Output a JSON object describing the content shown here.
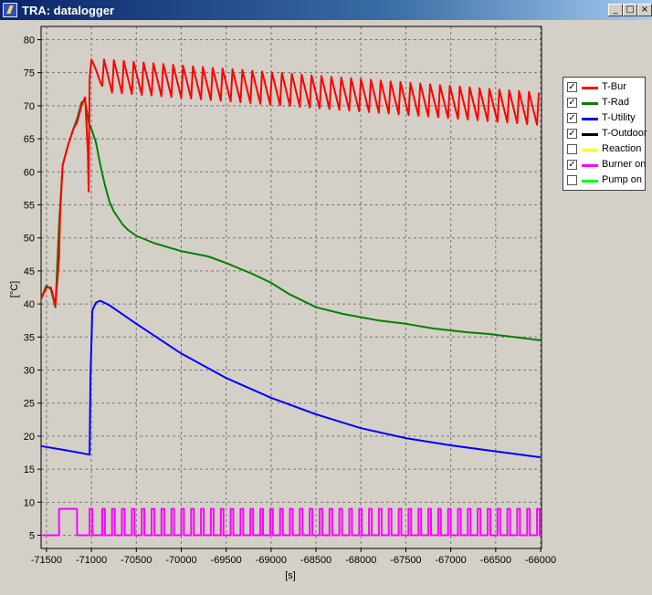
{
  "window": {
    "title": "TRA: datalogger",
    "minimize_label": "_",
    "maximize_label": "□",
    "close_label": "×"
  },
  "legend": {
    "items": [
      {
        "label": "T-Bur",
        "checked": true,
        "color": "#ff0000"
      },
      {
        "label": "T-Rad",
        "checked": true,
        "color": "#008000"
      },
      {
        "label": "T-Utility",
        "checked": true,
        "color": "#0000ff"
      },
      {
        "label": "T-Outdoor",
        "checked": true,
        "color": "#000000"
      },
      {
        "label": "Reaction",
        "checked": false,
        "color": "#ffff00"
      },
      {
        "label": "Burner on",
        "checked": true,
        "color": "#ff00ff"
      },
      {
        "label": "Pump on",
        "checked": false,
        "color": "#00ff00"
      }
    ]
  },
  "chart_data": {
    "type": "line",
    "xlabel": "[s]",
    "ylabel": "[°C]",
    "xlim": [
      -71560,
      -65990
    ],
    "ylim": [
      3,
      82
    ],
    "grid": true,
    "x_ticks": [
      -71500,
      -71000,
      -70500,
      -70000,
      -69500,
      -69000,
      -68500,
      -68000,
      -67500,
      -67000,
      -66500,
      -66000
    ],
    "y_ticks": [
      5,
      10,
      15,
      20,
      25,
      30,
      35,
      40,
      45,
      50,
      55,
      60,
      65,
      70,
      75,
      80
    ],
    "legend_position": "right",
    "series": [
      {
        "name": "T-Rad",
        "color": "#008000",
        "points": [
          [
            -71560,
            40.8
          ],
          [
            -71500,
            42.8
          ],
          [
            -71450,
            42.2
          ],
          [
            -71400,
            39.5
          ],
          [
            -71360,
            52
          ],
          [
            -71320,
            61
          ],
          [
            -71260,
            64
          ],
          [
            -71200,
            66.5
          ],
          [
            -71160,
            68
          ],
          [
            -71110,
            70.5
          ],
          [
            -71070,
            70.8
          ],
          [
            -71030,
            67.5
          ],
          [
            -71000,
            66.5
          ],
          [
            -70950,
            64.5
          ],
          [
            -70900,
            61
          ],
          [
            -70850,
            58
          ],
          [
            -70800,
            55.5
          ],
          [
            -70750,
            54
          ],
          [
            -70700,
            53
          ],
          [
            -70650,
            52
          ],
          [
            -70600,
            51.3
          ],
          [
            -70500,
            50.3
          ],
          [
            -70300,
            49.2
          ],
          [
            -70000,
            48
          ],
          [
            -69700,
            47.2
          ],
          [
            -69500,
            46.2
          ],
          [
            -69200,
            44.5
          ],
          [
            -69000,
            43.2
          ],
          [
            -68800,
            41.5
          ],
          [
            -68500,
            39.5
          ],
          [
            -68200,
            38.5
          ],
          [
            -68000,
            38
          ],
          [
            -67800,
            37.5
          ],
          [
            -67500,
            37
          ],
          [
            -67200,
            36.3
          ],
          [
            -67000,
            36
          ],
          [
            -66800,
            35.7
          ],
          [
            -66600,
            35.5
          ],
          [
            -66300,
            35
          ],
          [
            -66000,
            34.5
          ]
        ]
      },
      {
        "name": "T-Utility",
        "color": "#0000ff",
        "points": [
          [
            -71560,
            18.5
          ],
          [
            -71300,
            17.9
          ],
          [
            -71100,
            17.4
          ],
          [
            -71020,
            17.2
          ],
          [
            -71010,
            29
          ],
          [
            -70990,
            39
          ],
          [
            -70950,
            40.2
          ],
          [
            -70900,
            40.5
          ],
          [
            -70800,
            39.8
          ],
          [
            -70500,
            37
          ],
          [
            -70000,
            32.5
          ],
          [
            -69500,
            28.8
          ],
          [
            -69000,
            25.8
          ],
          [
            -68500,
            23.3
          ],
          [
            -68000,
            21.2
          ],
          [
            -67500,
            19.7
          ],
          [
            -67000,
            18.6
          ],
          [
            -66500,
            17.7
          ],
          [
            -66000,
            16.8
          ]
        ]
      },
      {
        "name": "T-Bur",
        "color": "#ff0000",
        "start": [
          [
            -71560,
            40.8
          ],
          [
            -71500,
            42.5
          ],
          [
            -71450,
            42.5
          ],
          [
            -71400,
            39.8
          ],
          [
            -71360,
            47
          ],
          [
            -71350,
            53
          ],
          [
            -71320,
            61
          ],
          [
            -71260,
            64
          ],
          [
            -71200,
            66.5
          ],
          [
            -71160,
            67.5
          ],
          [
            -71110,
            70
          ],
          [
            -71070,
            71.3
          ],
          [
            -71040,
            63
          ],
          [
            -71030,
            57
          ],
          [
            -71020,
            74
          ],
          [
            -71000,
            77
          ],
          [
            -70950,
            75.5
          ],
          [
            -70900,
            73.5
          ],
          [
            -70880,
            73
          ]
        ],
        "sawtooth": {
          "x_start": -70880,
          "x_end": -65990,
          "period": 110,
          "peak_start": 77,
          "peak_end": 72,
          "trough_start": 72,
          "trough_end": 67
        }
      },
      {
        "name": "Burner on",
        "color": "#ff00ff",
        "off_value": 5,
        "on_value": 9,
        "on_intervals": [
          [
            -71360,
            -71160
          ],
          [
            -71020,
            -70990
          ],
          [
            -70880,
            -70850
          ],
          [
            -70770,
            -70740
          ],
          [
            -70660,
            -70630
          ],
          [
            -70550,
            -70520
          ],
          [
            -70440,
            -70410
          ],
          [
            -70330,
            -70300
          ],
          [
            -70220,
            -70190
          ],
          [
            -70110,
            -70080
          ],
          [
            -70000,
            -69970
          ],
          [
            -69890,
            -69860
          ],
          [
            -69780,
            -69750
          ],
          [
            -69670,
            -69640
          ],
          [
            -69560,
            -69530
          ],
          [
            -69450,
            -69420
          ],
          [
            -69340,
            -69310
          ],
          [
            -69230,
            -69200
          ],
          [
            -69120,
            -69090
          ],
          [
            -69010,
            -68980
          ],
          [
            -68900,
            -68870
          ],
          [
            -68790,
            -68760
          ],
          [
            -68680,
            -68650
          ],
          [
            -68570,
            -68540
          ],
          [
            -68460,
            -68430
          ],
          [
            -68350,
            -68320
          ],
          [
            -68240,
            -68210
          ],
          [
            -68130,
            -68100
          ],
          [
            -68020,
            -67990
          ],
          [
            -67910,
            -67880
          ],
          [
            -67800,
            -67770
          ],
          [
            -67690,
            -67660
          ],
          [
            -67580,
            -67550
          ],
          [
            -67470,
            -67440
          ],
          [
            -67360,
            -67330
          ],
          [
            -67250,
            -67220
          ],
          [
            -67140,
            -67110
          ],
          [
            -67030,
            -67000
          ],
          [
            -66920,
            -66890
          ],
          [
            -66810,
            -66780
          ],
          [
            -66700,
            -66670
          ],
          [
            -66590,
            -66560
          ],
          [
            -66480,
            -66450
          ],
          [
            -66370,
            -66340
          ],
          [
            -66260,
            -66230
          ],
          [
            -66150,
            -66120
          ],
          [
            -66040,
            -66010
          ]
        ]
      }
    ]
  }
}
